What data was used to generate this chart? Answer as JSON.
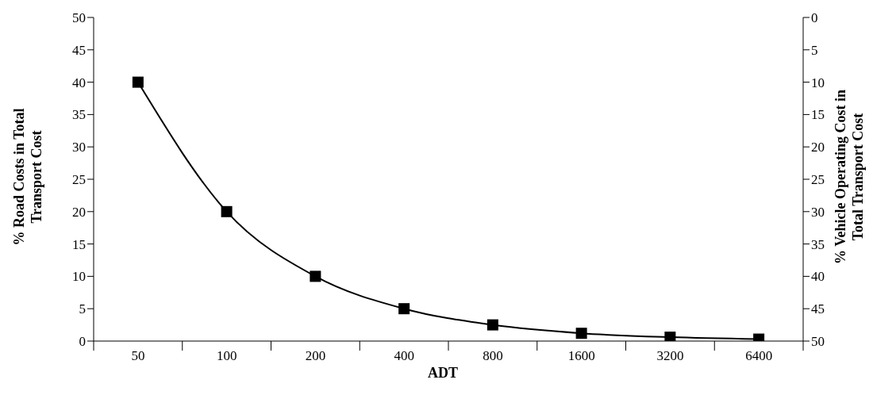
{
  "chart_data": {
    "type": "line",
    "xlabel": "ADT",
    "ylabel": "% Road Costs in Total Transport Cost",
    "y2label": "% Vehicle Operating Cost in Total Transport Cost",
    "categories": [
      "50",
      "100",
      "200",
      "400",
      "800",
      "1600",
      "3200",
      "6400"
    ],
    "series": [
      {
        "color": "#000000",
        "values": [
          40,
          20,
          10,
          5,
          2.5,
          1.2,
          0.6,
          0.3
        ]
      }
    ],
    "ylim": [
      0,
      50
    ],
    "yticks": [
      0,
      5,
      10,
      15,
      20,
      25,
      30,
      35,
      40,
      45,
      50
    ],
    "y2lim": [
      50,
      0
    ],
    "y2ticks": [
      0,
      5,
      10,
      15,
      20,
      25,
      30,
      35,
      40,
      45,
      50
    ],
    "grid": false,
    "marker": "square",
    "line_style": "solid"
  }
}
